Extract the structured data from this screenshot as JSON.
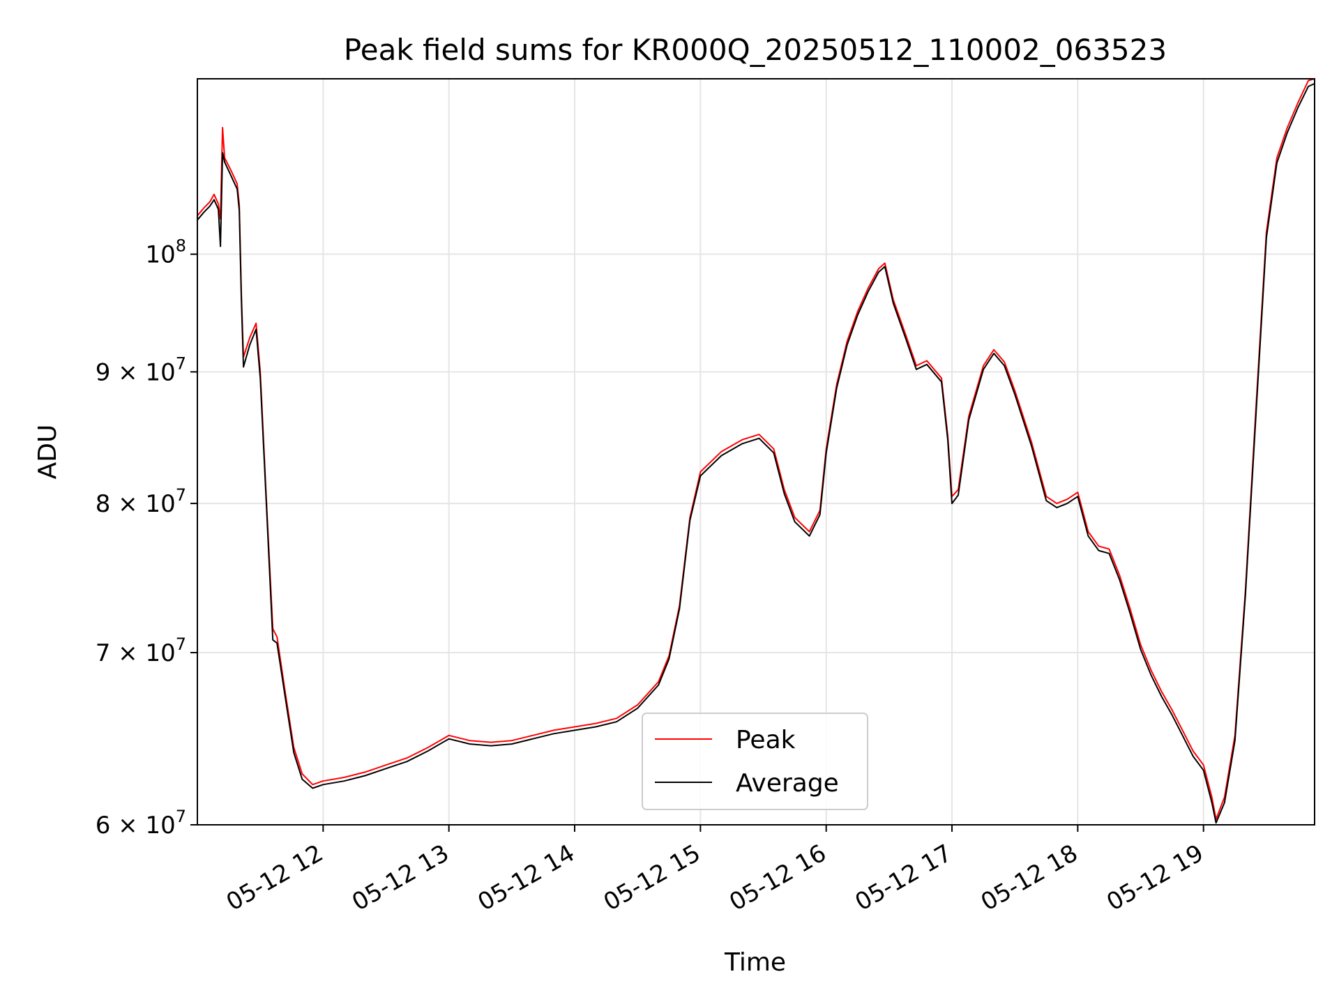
{
  "chart_data": {
    "type": "line",
    "title": "Peak field sums for KR000Q_20250512_110002_063523",
    "xlabel": "Time",
    "ylabel": "ADU",
    "yscale": "log",
    "grid": true,
    "legend_position": "lower-center",
    "xlim": [
      "2025-05-12 11:00",
      "2025-05-12 19:53"
    ],
    "ylim": [
      60000000,
      117000000
    ],
    "x_ticks": [
      {
        "value": "2025-05-12 12:00",
        "label": "05-12 12"
      },
      {
        "value": "2025-05-12 13:00",
        "label": "05-12 13"
      },
      {
        "value": "2025-05-12 14:00",
        "label": "05-12 14"
      },
      {
        "value": "2025-05-12 15:00",
        "label": "05-12 15"
      },
      {
        "value": "2025-05-12 16:00",
        "label": "05-12 16"
      },
      {
        "value": "2025-05-12 17:00",
        "label": "05-12 17"
      },
      {
        "value": "2025-05-12 18:00",
        "label": "05-12 18"
      },
      {
        "value": "2025-05-12 19:00",
        "label": "05-12 19"
      }
    ],
    "y_ticks": [
      {
        "value": 60000000,
        "mantissa": "6",
        "base": "10",
        "exp": "7"
      },
      {
        "value": 70000000,
        "mantissa": "7",
        "base": "10",
        "exp": "7"
      },
      {
        "value": 80000000,
        "mantissa": "8",
        "base": "10",
        "exp": "7"
      },
      {
        "value": 90000000,
        "mantissa": "9",
        "base": "10",
        "exp": "7"
      },
      {
        "value": 100000000,
        "mantissa": "",
        "base": "10",
        "exp": "8"
      }
    ],
    "series": [
      {
        "name": "Peak",
        "color": "#ff0000",
        "points": [
          [
            "2025-05-12 11:00",
            103500000
          ],
          [
            "2025-05-12 11:03",
            104200000
          ],
          [
            "2025-05-12 11:06",
            104800000
          ],
          [
            "2025-05-12 11:08",
            105500000
          ],
          [
            "2025-05-12 11:10",
            104600000
          ],
          [
            "2025-05-12 11:11",
            103200000
          ],
          [
            "2025-05-12 11:12",
            112000000
          ],
          [
            "2025-05-12 11:13",
            109000000
          ],
          [
            "2025-05-12 11:16",
            107800000
          ],
          [
            "2025-05-12 11:19",
            106500000
          ],
          [
            "2025-05-12 11:20",
            104500000
          ],
          [
            "2025-05-12 11:21",
            96500000
          ],
          [
            "2025-05-12 11:22",
            91200000
          ],
          [
            "2025-05-12 11:25",
            92800000
          ],
          [
            "2025-05-12 11:28",
            94000000
          ],
          [
            "2025-05-12 11:30",
            90000000
          ],
          [
            "2025-05-12 11:33",
            80000000
          ],
          [
            "2025-05-12 11:36",
            71500000
          ],
          [
            "2025-05-12 11:38",
            71000000
          ],
          [
            "2025-05-12 11:42",
            67500000
          ],
          [
            "2025-05-12 11:46",
            64300000
          ],
          [
            "2025-05-12 11:50",
            62800000
          ],
          [
            "2025-05-12 11:55",
            62200000
          ],
          [
            "2025-05-12 12:00",
            62400000
          ],
          [
            "2025-05-12 12:10",
            62600000
          ],
          [
            "2025-05-12 12:20",
            62900000
          ],
          [
            "2025-05-12 12:30",
            63300000
          ],
          [
            "2025-05-12 12:40",
            63700000
          ],
          [
            "2025-05-12 12:50",
            64300000
          ],
          [
            "2025-05-12 13:00",
            65000000
          ],
          [
            "2025-05-12 13:10",
            64700000
          ],
          [
            "2025-05-12 13:20",
            64600000
          ],
          [
            "2025-05-12 13:30",
            64700000
          ],
          [
            "2025-05-12 13:40",
            65000000
          ],
          [
            "2025-05-12 13:50",
            65300000
          ],
          [
            "2025-05-12 14:00",
            65500000
          ],
          [
            "2025-05-12 14:10",
            65700000
          ],
          [
            "2025-05-12 14:20",
            66000000
          ],
          [
            "2025-05-12 14:30",
            66800000
          ],
          [
            "2025-05-12 14:40",
            68200000
          ],
          [
            "2025-05-12 14:45",
            69800000
          ],
          [
            "2025-05-12 14:50",
            73000000
          ],
          [
            "2025-05-12 14:55",
            79000000
          ],
          [
            "2025-05-12 15:00",
            82300000
          ],
          [
            "2025-05-12 15:10",
            83800000
          ],
          [
            "2025-05-12 15:20",
            84700000
          ],
          [
            "2025-05-12 15:28",
            85100000
          ],
          [
            "2025-05-12 15:35",
            84000000
          ],
          [
            "2025-05-12 15:40",
            81000000
          ],
          [
            "2025-05-12 15:45",
            79000000
          ],
          [
            "2025-05-12 15:52",
            78000000
          ],
          [
            "2025-05-12 15:57",
            79500000
          ],
          [
            "2025-05-12 16:00",
            84000000
          ],
          [
            "2025-05-12 16:05",
            89000000
          ],
          [
            "2025-05-12 16:10",
            92500000
          ],
          [
            "2025-05-12 16:15",
            95000000
          ],
          [
            "2025-05-12 16:20",
            97000000
          ],
          [
            "2025-05-12 16:25",
            98700000
          ],
          [
            "2025-05-12 16:28",
            99200000
          ],
          [
            "2025-05-12 16:32",
            96000000
          ],
          [
            "2025-05-12 16:38",
            93000000
          ],
          [
            "2025-05-12 16:43",
            90500000
          ],
          [
            "2025-05-12 16:48",
            90900000
          ],
          [
            "2025-05-12 16:55",
            89500000
          ],
          [
            "2025-05-12 16:58",
            85000000
          ],
          [
            "2025-05-12 17:00",
            80500000
          ],
          [
            "2025-05-12 17:03",
            81000000
          ],
          [
            "2025-05-12 17:08",
            86500000
          ],
          [
            "2025-05-12 17:15",
            90500000
          ],
          [
            "2025-05-12 17:20",
            91800000
          ],
          [
            "2025-05-12 17:25",
            90800000
          ],
          [
            "2025-05-12 17:30",
            88500000
          ],
          [
            "2025-05-12 17:38",
            84500000
          ],
          [
            "2025-05-12 17:45",
            80500000
          ],
          [
            "2025-05-12 17:50",
            80000000
          ],
          [
            "2025-05-12 17:55",
            80300000
          ],
          [
            "2025-05-12 18:00",
            80800000
          ],
          [
            "2025-05-12 18:05",
            78000000
          ],
          [
            "2025-05-12 18:10",
            77000000
          ],
          [
            "2025-05-12 18:15",
            76800000
          ],
          [
            "2025-05-12 18:20",
            75000000
          ],
          [
            "2025-05-12 18:25",
            72800000
          ],
          [
            "2025-05-12 18:30",
            70500000
          ],
          [
            "2025-05-12 18:35",
            68900000
          ],
          [
            "2025-05-12 18:40",
            67600000
          ],
          [
            "2025-05-12 18:45",
            66500000
          ],
          [
            "2025-05-12 18:50",
            65300000
          ],
          [
            "2025-05-12 18:55",
            64100000
          ],
          [
            "2025-05-12 19:00",
            63300000
          ],
          [
            "2025-05-12 19:04",
            61500000
          ],
          [
            "2025-05-12 19:06",
            60300000
          ],
          [
            "2025-05-12 19:10",
            61500000
          ],
          [
            "2025-05-12 19:15",
            65000000
          ],
          [
            "2025-05-12 19:20",
            74000000
          ],
          [
            "2025-05-12 19:25",
            87000000
          ],
          [
            "2025-05-12 19:30",
            102000000
          ],
          [
            "2025-05-12 19:35",
            109000000
          ],
          [
            "2025-05-12 19:40",
            112000000
          ],
          [
            "2025-05-12 19:45",
            114500000
          ],
          [
            "2025-05-12 19:50",
            116800000
          ],
          [
            "2025-05-12 19:53",
            117000000
          ]
        ]
      },
      {
        "name": "Average",
        "color": "#000000",
        "points": [
          [
            "2025-05-12 11:00",
            103100000
          ],
          [
            "2025-05-12 11:03",
            103800000
          ],
          [
            "2025-05-12 11:06",
            104400000
          ],
          [
            "2025-05-12 11:08",
            105000000
          ],
          [
            "2025-05-12 11:10",
            104100000
          ],
          [
            "2025-05-12 11:11",
            100700000
          ],
          [
            "2025-05-12 11:12",
            109500000
          ],
          [
            "2025-05-12 11:13",
            108600000
          ],
          [
            "2025-05-12 11:16",
            107300000
          ],
          [
            "2025-05-12 11:19",
            106000000
          ],
          [
            "2025-05-12 11:20",
            104000000
          ],
          [
            "2025-05-12 11:21",
            96000000
          ],
          [
            "2025-05-12 11:22",
            90400000
          ],
          [
            "2025-05-12 11:25",
            92200000
          ],
          [
            "2025-05-12 11:28",
            93500000
          ],
          [
            "2025-05-12 11:30",
            89500000
          ],
          [
            "2025-05-12 11:33",
            79700000
          ],
          [
            "2025-05-12 11:36",
            70800000
          ],
          [
            "2025-05-12 11:38",
            70600000
          ],
          [
            "2025-05-12 11:42",
            67200000
          ],
          [
            "2025-05-12 11:46",
            64000000
          ],
          [
            "2025-05-12 11:50",
            62500000
          ],
          [
            "2025-05-12 11:55",
            62000000
          ],
          [
            "2025-05-12 12:00",
            62200000
          ],
          [
            "2025-05-12 12:10",
            62400000
          ],
          [
            "2025-05-12 12:20",
            62700000
          ],
          [
            "2025-05-12 12:30",
            63100000
          ],
          [
            "2025-05-12 12:40",
            63500000
          ],
          [
            "2025-05-12 12:50",
            64100000
          ],
          [
            "2025-05-12 13:00",
            64800000
          ],
          [
            "2025-05-12 13:10",
            64500000
          ],
          [
            "2025-05-12 13:20",
            64400000
          ],
          [
            "2025-05-12 13:30",
            64500000
          ],
          [
            "2025-05-12 13:40",
            64800000
          ],
          [
            "2025-05-12 13:50",
            65100000
          ],
          [
            "2025-05-12 14:00",
            65300000
          ],
          [
            "2025-05-12 14:10",
            65500000
          ],
          [
            "2025-05-12 14:20",
            65800000
          ],
          [
            "2025-05-12 14:30",
            66600000
          ],
          [
            "2025-05-12 14:40",
            68000000
          ],
          [
            "2025-05-12 14:45",
            69600000
          ],
          [
            "2025-05-12 14:50",
            72800000
          ],
          [
            "2025-05-12 14:55",
            78800000
          ],
          [
            "2025-05-12 15:00",
            82000000
          ],
          [
            "2025-05-12 15:10",
            83500000
          ],
          [
            "2025-05-12 15:20",
            84400000
          ],
          [
            "2025-05-12 15:28",
            84800000
          ],
          [
            "2025-05-12 15:35",
            83700000
          ],
          [
            "2025-05-12 15:40",
            80700000
          ],
          [
            "2025-05-12 15:45",
            78700000
          ],
          [
            "2025-05-12 15:52",
            77700000
          ],
          [
            "2025-05-12 15:57",
            79200000
          ],
          [
            "2025-05-12 16:00",
            83700000
          ],
          [
            "2025-05-12 16:05",
            88700000
          ],
          [
            "2025-05-12 16:10",
            92200000
          ],
          [
            "2025-05-12 16:15",
            94700000
          ],
          [
            "2025-05-12 16:20",
            96700000
          ],
          [
            "2025-05-12 16:25",
            98400000
          ],
          [
            "2025-05-12 16:28",
            98900000
          ],
          [
            "2025-05-12 16:32",
            95700000
          ],
          [
            "2025-05-12 16:38",
            92700000
          ],
          [
            "2025-05-12 16:43",
            90200000
          ],
          [
            "2025-05-12 16:48",
            90600000
          ],
          [
            "2025-05-12 16:55",
            89200000
          ],
          [
            "2025-05-12 16:58",
            84700000
          ],
          [
            "2025-05-12 17:00",
            80000000
          ],
          [
            "2025-05-12 17:03",
            80600000
          ],
          [
            "2025-05-12 17:08",
            86200000
          ],
          [
            "2025-05-12 17:15",
            90200000
          ],
          [
            "2025-05-12 17:20",
            91500000
          ],
          [
            "2025-05-12 17:25",
            90500000
          ],
          [
            "2025-05-12 17:30",
            88200000
          ],
          [
            "2025-05-12 17:38",
            84200000
          ],
          [
            "2025-05-12 17:45",
            80200000
          ],
          [
            "2025-05-12 17:50",
            79700000
          ],
          [
            "2025-05-12 17:55",
            80000000
          ],
          [
            "2025-05-12 18:00",
            80500000
          ],
          [
            "2025-05-12 18:05",
            77700000
          ],
          [
            "2025-05-12 18:10",
            76700000
          ],
          [
            "2025-05-12 18:15",
            76500000
          ],
          [
            "2025-05-12 18:20",
            74700000
          ],
          [
            "2025-05-12 18:25",
            72500000
          ],
          [
            "2025-05-12 18:30",
            70200000
          ],
          [
            "2025-05-12 18:35",
            68600000
          ],
          [
            "2025-05-12 18:40",
            67300000
          ],
          [
            "2025-05-12 18:45",
            66200000
          ],
          [
            "2025-05-12 18:50",
            65000000
          ],
          [
            "2025-05-12 18:55",
            63800000
          ],
          [
            "2025-05-12 19:00",
            63000000
          ],
          [
            "2025-05-12 19:04",
            61200000
          ],
          [
            "2025-05-12 19:06",
            60100000
          ],
          [
            "2025-05-12 19:10",
            61200000
          ],
          [
            "2025-05-12 19:15",
            64700000
          ],
          [
            "2025-05-12 19:20",
            73700000
          ],
          [
            "2025-05-12 19:25",
            86500000
          ],
          [
            "2025-05-12 19:30",
            101500000
          ],
          [
            "2025-05-12 19:35",
            108500000
          ],
          [
            "2025-05-12 19:40",
            111500000
          ],
          [
            "2025-05-12 19:45",
            114000000
          ],
          [
            "2025-05-12 19:50",
            116200000
          ],
          [
            "2025-05-12 19:53",
            116500000
          ]
        ]
      }
    ]
  }
}
